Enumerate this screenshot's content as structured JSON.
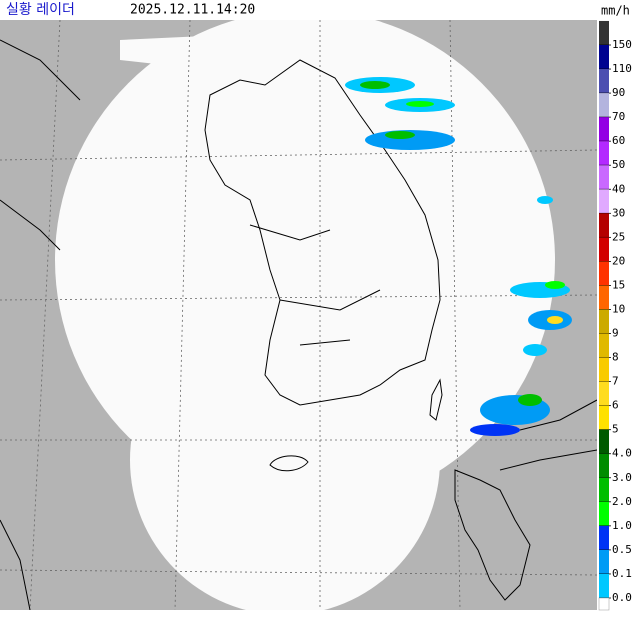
{
  "header": {
    "title": "실황 레이더",
    "time": "2025.12.11.14:20"
  },
  "legend": {
    "unit": "mm/h",
    "items": [
      {
        "label": "150",
        "color": "#333333"
      },
      {
        "label": "110",
        "color": "#000390"
      },
      {
        "label": "90",
        "color": "#4c4eb1"
      },
      {
        "label": "70",
        "color": "#b3b4de"
      },
      {
        "label": "60",
        "color": "#9300e4"
      },
      {
        "label": "50",
        "color": "#b329ff"
      },
      {
        "label": "40",
        "color": "#c969ff"
      },
      {
        "label": "30",
        "color": "#e0a9ff"
      },
      {
        "label": "25",
        "color": "#b40000"
      },
      {
        "label": "20",
        "color": "#d20000"
      },
      {
        "label": "15",
        "color": "#ff3200"
      },
      {
        "label": "10",
        "color": "#ff6600"
      },
      {
        "label": "9",
        "color": "#ccaa00"
      },
      {
        "label": "8",
        "color": "#e0b900"
      },
      {
        "label": "7",
        "color": "#f9cb00"
      },
      {
        "label": "6",
        "color": "#ffdc1f"
      },
      {
        "label": "5",
        "color": "#ffe100"
      },
      {
        "label": "4.0",
        "color": "#005a00"
      },
      {
        "label": "3.0",
        "color": "#008c00"
      },
      {
        "label": "2.0",
        "color": "#00be00"
      },
      {
        "label": "1.0",
        "color": "#00ff00"
      },
      {
        "label": "0.5",
        "color": "#0033f5"
      },
      {
        "label": "0.1",
        "color": "#009bf5"
      },
      {
        "label": "0.0",
        "color": "#00c8ff"
      }
    ]
  }
}
